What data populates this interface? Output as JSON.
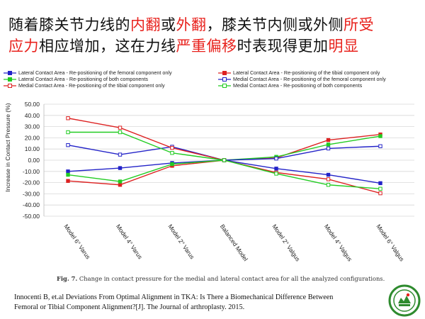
{
  "headline": {
    "line1": [
      {
        "text": "随着膝关节力线的",
        "color": "#111111"
      },
      {
        "text": "内翻",
        "color": "#e8211c"
      },
      {
        "text": "或",
        "color": "#111111"
      },
      {
        "text": "外翻",
        "color": "#e8211c"
      },
      {
        "text": "，膝关节内侧或外侧",
        "color": "#111111"
      },
      {
        "text": "所受",
        "color": "#e8211c"
      }
    ],
    "line2": [
      {
        "text": "应力",
        "color": "#e8211c"
      },
      {
        "text": "相应增加，这在力线",
        "color": "#111111"
      },
      {
        "text": "严重偏移",
        "color": "#e8211c"
      },
      {
        "text": "时表现得更加",
        "color": "#111111"
      },
      {
        "text": "明显",
        "color": "#e8211c"
      }
    ]
  },
  "chart_data": {
    "type": "line",
    "ylabel": "Increase in Contact Pressure (%)",
    "ylim": [
      -50,
      50
    ],
    "yticks": [
      "50.00",
      "40.00",
      "30.00",
      "20.00",
      "10.00",
      "0.00",
      "-10.00",
      "-20.00",
      "-30.00",
      "-40.00",
      "-50.00"
    ],
    "grid": true,
    "legend_position": "top",
    "categories": [
      "Model 6° Varus",
      "Model 4° Varus",
      "Model 2° Varus",
      "Balanced Model",
      "Model 2° Valgus",
      "Model 4° Valgus",
      "Model 6° Valgus"
    ],
    "series": [
      {
        "name": "Lateral Contact Area - Re-positioning of the femoral component only",
        "color": "#2323c8",
        "marker": "filled",
        "values": [
          -10,
          -7,
          -2.5,
          0,
          -7.5,
          -13,
          -20.5
        ]
      },
      {
        "name": "Lateral Contact Area - Re-positioning of the tibial component only",
        "color": "#dd2222",
        "marker": "filled",
        "values": [
          -18.5,
          -22,
          -5,
          0,
          2,
          18,
          23
        ]
      },
      {
        "name": "Lateral Contact Area - Re-positioning of both components",
        "color": "#22cc22",
        "marker": "filled",
        "values": [
          -13,
          -19,
          -3.5,
          0,
          3,
          14,
          21.5
        ]
      },
      {
        "name": "Medial Contact Area - Re-positioning of the femoral component only",
        "color": "#2323c8",
        "marker": "open",
        "values": [
          13.5,
          5,
          12,
          0,
          1.5,
          10.5,
          12.5
        ]
      },
      {
        "name": "Medial Contact Area - Re-positioning of the tibial component only",
        "color": "#dd2222",
        "marker": "open",
        "values": [
          37.5,
          29,
          11,
          0,
          -11,
          -17,
          -29.5
        ]
      },
      {
        "name": "Medial Contact Area - Re-positioning of both components",
        "color": "#22cc22",
        "marker": "open",
        "values": [
          25,
          25,
          6.5,
          0,
          -12,
          -22,
          -25.5
        ]
      }
    ]
  },
  "figure_caption": {
    "label": "Fig. 7.",
    "text": " Change in contact pressure for the medial and lateral contact area for all the analyzed configurations."
  },
  "citation": {
    "line1": "Innocenti B, et.al Deviations From Optimal Alignment in TKA: Is There a Biomechanical Difference Between",
    "line2": "Femoral or Tibial Component Alignment?[J]. The Journal of arthroplasty. 2015."
  },
  "logo": {
    "icon": "university-emblem-icon",
    "color": "#2e8b2e"
  }
}
